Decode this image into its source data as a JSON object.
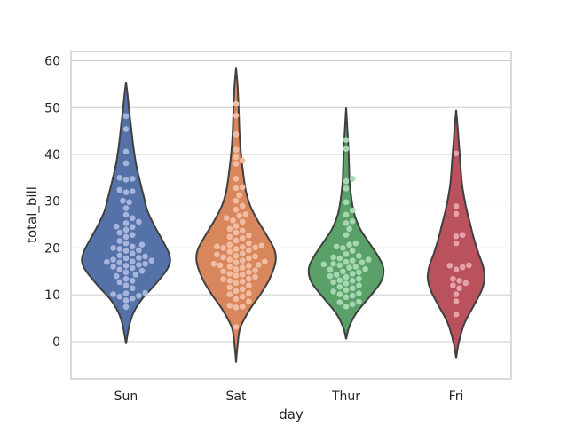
{
  "chart_data": {
    "type": "violin",
    "subtype": "violin with swarm overlay",
    "xlabel": "day",
    "ylabel": "total_bill",
    "categories": [
      "Sun",
      "Sat",
      "Thur",
      "Fri"
    ],
    "ylim": [
      -8,
      62
    ],
    "yticks": [
      0,
      10,
      20,
      30,
      40,
      50,
      60
    ],
    "grid": "horizontal",
    "legend": "none",
    "colors": {
      "Sun": "#5572a8",
      "Sat": "#d8875c",
      "Thur": "#5aa169",
      "Fri": "#b9525d"
    },
    "point_colors": {
      "Sun": "#a7b4dc",
      "Sat": "#f2bca2",
      "Thur": "#a6d7b0",
      "Fri": "#e4a3ab"
    },
    "violins": [
      {
        "category": "Sun",
        "range": [
          -0.5,
          55.5
        ],
        "profile": [
          [
            -0.5,
            0
          ],
          [
            3,
            0.04
          ],
          [
            6,
            0.1
          ],
          [
            9,
            0.22
          ],
          [
            12,
            0.4
          ],
          [
            15,
            0.56
          ],
          [
            17,
            0.62
          ],
          [
            19,
            0.6
          ],
          [
            22,
            0.5
          ],
          [
            25,
            0.39
          ],
          [
            28,
            0.3
          ],
          [
            31,
            0.25
          ],
          [
            34,
            0.2
          ],
          [
            38,
            0.14
          ],
          [
            42,
            0.1
          ],
          [
            46,
            0.07
          ],
          [
            50,
            0.04
          ],
          [
            53,
            0.02
          ],
          [
            55.5,
            0
          ]
        ],
        "values": [
          48.2,
          45.4,
          40.6,
          38.1,
          35.0,
          34.8,
          34.6,
          32.4,
          32.1,
          31.9,
          30.1,
          29.8,
          28.5,
          27.1,
          26.4,
          25.6,
          25.3,
          24.6,
          24.5,
          23.9,
          23.3,
          22.8,
          22.4,
          21.5,
          21.0,
          20.7,
          20.3,
          20.0,
          19.8,
          19.5,
          19.4,
          18.8,
          18.4,
          18.2,
          17.9,
          17.8,
          17.5,
          17.3,
          17.1,
          17.0,
          16.9,
          16.6,
          16.4,
          16.2,
          16.0,
          15.7,
          15.4,
          15.1,
          14.8,
          14.3,
          14.0,
          13.4,
          13.0,
          12.7,
          12.0,
          11.4,
          10.4,
          10.3,
          10.1,
          9.8,
          9.6,
          9.2,
          8.8,
          7.4
        ]
      },
      {
        "category": "Sat",
        "range": [
          -4.5,
          58.5
        ],
        "profile": [
          [
            -4.5,
            0
          ],
          [
            -1,
            0.02
          ],
          [
            3,
            0.06
          ],
          [
            7,
            0.2
          ],
          [
            10,
            0.34
          ],
          [
            13,
            0.46
          ],
          [
            16,
            0.54
          ],
          [
            18,
            0.56
          ],
          [
            20,
            0.53
          ],
          [
            23,
            0.42
          ],
          [
            26,
            0.3
          ],
          [
            29,
            0.2
          ],
          [
            32,
            0.14
          ],
          [
            36,
            0.1
          ],
          [
            40,
            0.07
          ],
          [
            44,
            0.05
          ],
          [
            48,
            0.04
          ],
          [
            52,
            0.03
          ],
          [
            55,
            0.02
          ],
          [
            58.5,
            0
          ]
        ],
        "values": [
          50.8,
          48.3,
          44.3,
          41.0,
          39.4,
          38.7,
          38.0,
          34.8,
          33.0,
          32.8,
          31.3,
          30.1,
          29.0,
          28.2,
          27.2,
          26.9,
          26.4,
          25.9,
          25.6,
          24.7,
          24.1,
          23.7,
          23.3,
          22.7,
          22.4,
          22.1,
          21.6,
          21.0,
          20.7,
          20.5,
          20.3,
          20.2,
          20.1,
          20.0,
          19.8,
          19.5,
          19.2,
          18.8,
          18.6,
          18.3,
          18.2,
          18.0,
          17.8,
          17.5,
          17.3,
          17.1,
          16.9,
          16.6,
          16.4,
          16.3,
          16.2,
          16.0,
          15.8,
          15.5,
          15.2,
          15.0,
          14.8,
          14.5,
          14.3,
          14.1,
          13.8,
          13.4,
          13.3,
          13.0,
          12.8,
          12.5,
          12.0,
          11.6,
          11.2,
          10.8,
          10.3,
          10.1,
          9.6,
          9.1,
          8.6,
          7.7,
          7.5,
          7.3,
          3.1
        ]
      },
      {
        "category": "Thur",
        "range": [
          0.5,
          50.0
        ],
        "profile": [
          [
            0.5,
            0
          ],
          [
            3,
            0.04
          ],
          [
            6,
            0.14
          ],
          [
            9,
            0.3
          ],
          [
            12,
            0.46
          ],
          [
            14,
            0.52
          ],
          [
            16,
            0.52
          ],
          [
            18,
            0.46
          ],
          [
            21,
            0.33
          ],
          [
            24,
            0.2
          ],
          [
            27,
            0.12
          ],
          [
            30,
            0.08
          ],
          [
            34,
            0.05
          ],
          [
            38,
            0.04
          ],
          [
            42,
            0.03
          ],
          [
            46,
            0.015
          ],
          [
            50,
            0
          ]
        ],
        "values": [
          43.1,
          41.2,
          34.8,
          34.3,
          32.7,
          29.8,
          28.0,
          27.1,
          25.7,
          25.3,
          24.1,
          22.8,
          21.0,
          20.7,
          20.3,
          20.0,
          19.4,
          18.7,
          18.3,
          18.0,
          17.8,
          17.5,
          17.3,
          17.0,
          16.9,
          16.6,
          16.5,
          16.3,
          16.0,
          15.8,
          15.5,
          15.4,
          15.0,
          14.8,
          14.5,
          14.3,
          14.0,
          13.8,
          13.4,
          13.1,
          13.0,
          12.7,
          12.4,
          12.0,
          11.7,
          11.4,
          11.0,
          10.7,
          10.3,
          10.1,
          9.8,
          9.5,
          8.5,
          8.4,
          8.0,
          7.5
        ]
      },
      {
        "category": "Fri",
        "range": [
          -3.5,
          49.5
        ],
        "profile": [
          [
            -3.5,
            0
          ],
          [
            0,
            0.04
          ],
          [
            4,
            0.12
          ],
          [
            8,
            0.26
          ],
          [
            11,
            0.36
          ],
          [
            13.5,
            0.4
          ],
          [
            16,
            0.38
          ],
          [
            19,
            0.31
          ],
          [
            22,
            0.25
          ],
          [
            25,
            0.2
          ],
          [
            28,
            0.15
          ],
          [
            31,
            0.11
          ],
          [
            34,
            0.08
          ],
          [
            38,
            0.06
          ],
          [
            42,
            0.04
          ],
          [
            46,
            0.02
          ],
          [
            49.5,
            0
          ]
        ],
        "values": [
          40.2,
          28.9,
          27.3,
          22.8,
          22.5,
          21.0,
          16.3,
          16.2,
          15.9,
          15.4,
          13.4,
          13.0,
          12.5,
          12.0,
          11.4,
          10.1,
          8.6,
          5.8
        ]
      }
    ]
  }
}
